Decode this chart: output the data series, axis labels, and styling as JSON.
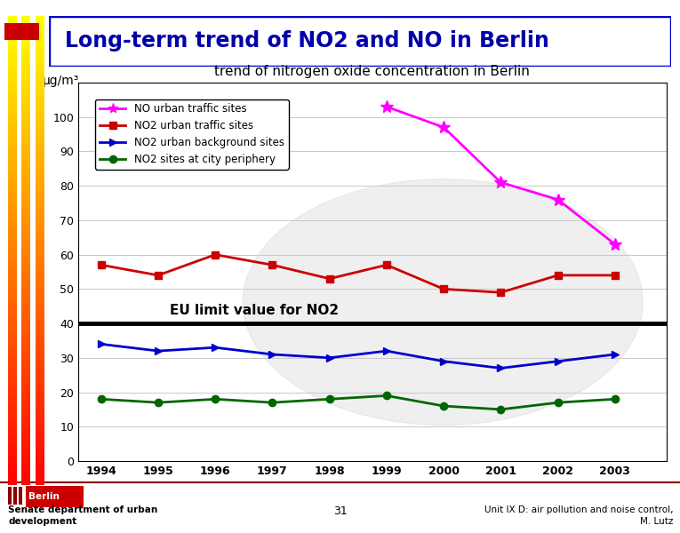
{
  "title": "Long-term trend of NO2 and NO in Berlin",
  "chart_title": "trend of nitrogen oxide concentration in Berlin",
  "ylabel": "μg/m³",
  "years": [
    1994,
    1995,
    1996,
    1997,
    1998,
    1999,
    2000,
    2001,
    2002,
    2003
  ],
  "no_x": [
    1999,
    2000,
    2001,
    2002,
    2003
  ],
  "no_y": [
    103,
    97,
    81,
    76,
    63
  ],
  "NO2_urban_traffic": [
    57,
    54,
    60,
    57,
    53,
    57,
    50,
    49,
    54,
    54
  ],
  "NO2_urban_background": [
    34,
    32,
    33,
    31,
    30,
    32,
    29,
    27,
    29,
    31
  ],
  "NO2_city_periphery": [
    18,
    17,
    18,
    17,
    18,
    19,
    16,
    15,
    17,
    18
  ],
  "NO_color": "#ff00ff",
  "NO2_traffic_color": "#cc0000",
  "NO2_background_color": "#0000cc",
  "NO2_periphery_color": "#006600",
  "eu_limit": 40,
  "ylim_max": 110,
  "yticks": [
    0,
    10,
    20,
    30,
    40,
    50,
    60,
    70,
    80,
    90,
    100
  ],
  "bg_color": "#ffffff",
  "title_box_color": "#0000cc",
  "title_text_color": "#0000aa",
  "footer_line_color": "#8B0000",
  "eu_label": "EU limit value for NO2",
  "legend_entries": [
    "NO urban traffic sites",
    "NO2 urban traffic sites",
    "NO2 urban background sites",
    "NO2 sites at city periphery"
  ],
  "left_bar_colors": [
    "#ffff88",
    "#ffee44",
    "#ffaa00"
  ],
  "small_red_rect_color": "#cc0000",
  "footer_berlin_bg": "#cc0000",
  "footer_text_left": "Senate department of urban\ndevelopment",
  "footer_text_center": "31",
  "footer_text_right": "Unit IX D: air pollution and noise control,\n                        M. Lutz"
}
